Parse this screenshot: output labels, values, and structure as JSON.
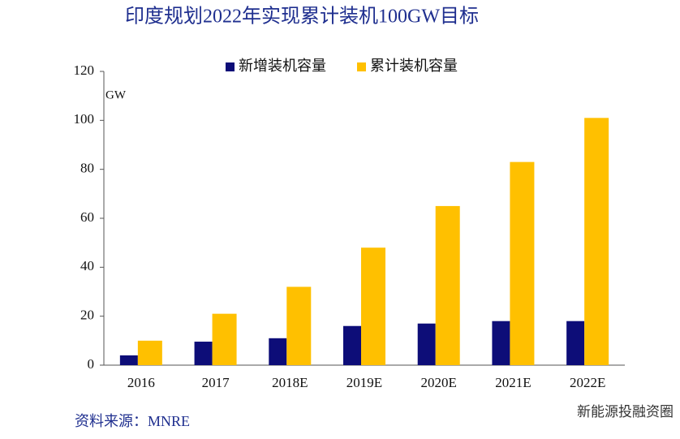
{
  "chart_data": {
    "type": "bar",
    "title": "印度规划2022年实现累计装机100GW目标",
    "y_unit": "GW",
    "categories": [
      "2016",
      "2017",
      "2018E",
      "2019E",
      "2020E",
      "2021E",
      "2022E"
    ],
    "series": [
      {
        "name": "新增装机容量",
        "color": "#0d0d78",
        "values": [
          4,
          9.6,
          11,
          16,
          17,
          18,
          18
        ]
      },
      {
        "name": "累计装机容量",
        "color": "#ffc000",
        "values": [
          10,
          21,
          32,
          48,
          65,
          83,
          101
        ]
      }
    ],
    "ylim": [
      0,
      120
    ],
    "yticks": [
      0,
      20,
      40,
      60,
      80,
      100,
      120
    ],
    "source": "资料来源：MNRE",
    "watermark": "新能源投融资圈"
  }
}
